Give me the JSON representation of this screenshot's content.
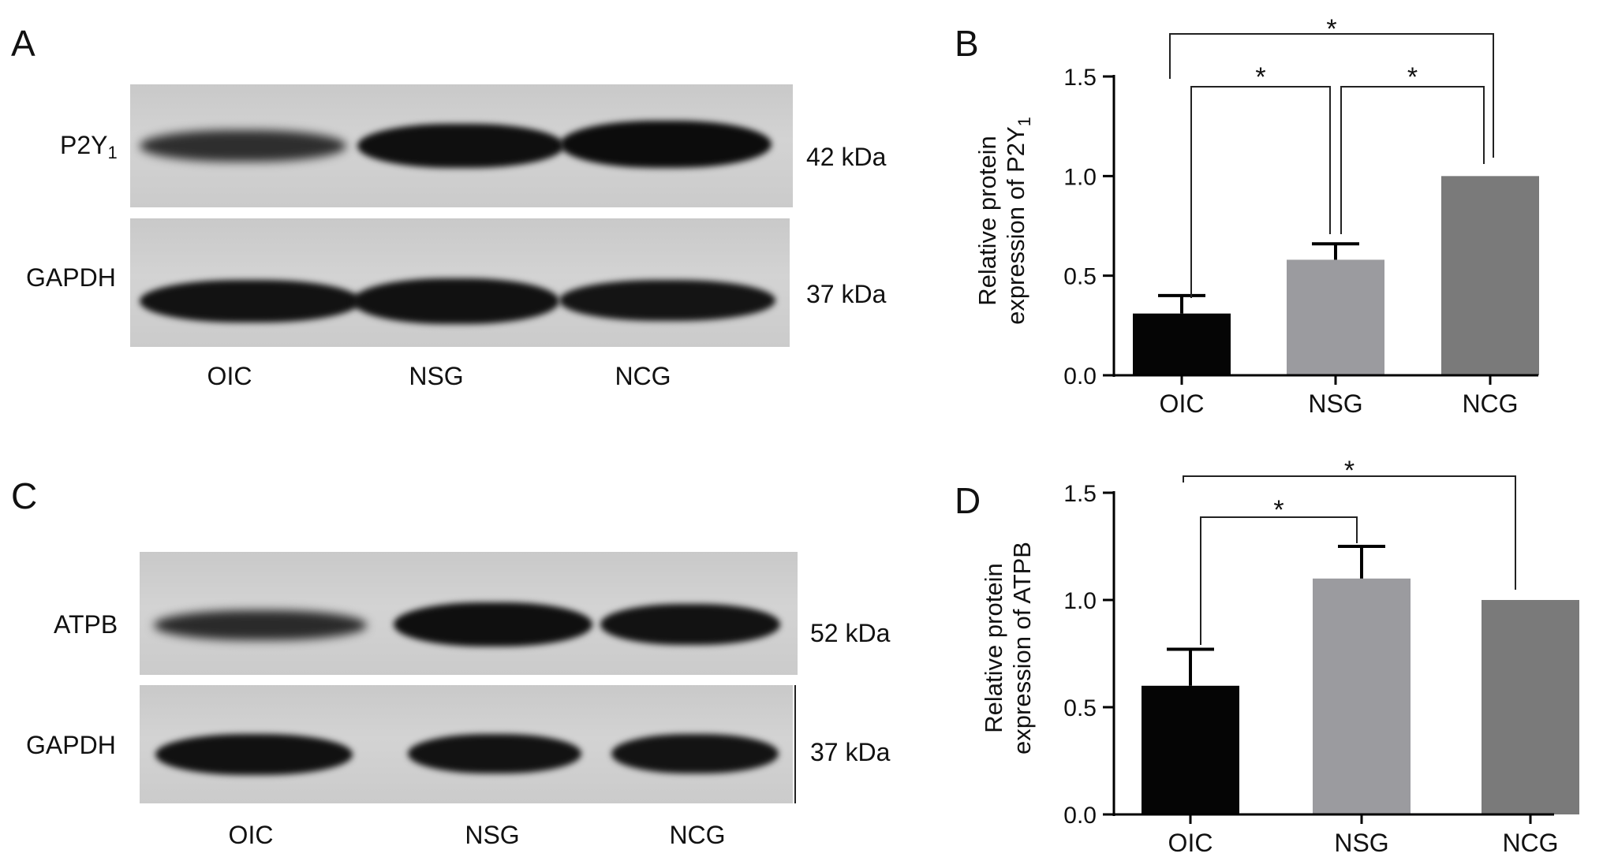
{
  "panels": {
    "a": {
      "letter": "A",
      "protein_top": "P2Y",
      "protein_top_sub": "1",
      "protein_bottom": "GAPDH",
      "kda_top": "42 kDa",
      "kda_bottom": "37 kDa",
      "lanes": [
        "OIC",
        "NSG",
        "NCG"
      ]
    },
    "b": {
      "letter": "B"
    },
    "c": {
      "letter": "C",
      "protein_top": "ATPB",
      "protein_bottom": "GAPDH",
      "kda_top": "52 kDa",
      "kda_bottom": "37 kDa",
      "lanes": [
        "OIC",
        "NSG",
        "NCG"
      ]
    },
    "d": {
      "letter": "D"
    }
  },
  "chart_data": [
    {
      "panel": "B",
      "type": "bar",
      "categories": [
        "OIC",
        "NSG",
        "NCG"
      ],
      "values": [
        0.31,
        0.58,
        1.0
      ],
      "error": [
        0.09,
        0.08,
        0.0
      ],
      "ylabel_line1": "Relative protein",
      "ylabel_line2": "expression of P2Y",
      "ylabel_sub": "1",
      "ylim": [
        0,
        1.5
      ],
      "yticks": [
        "0.0",
        "0.5",
        "1.0",
        "1.5"
      ],
      "bar_colors": [
        "#050505",
        "#9b9b9f",
        "#7a7a7a"
      ],
      "significance": [
        {
          "from": 0,
          "to": 1,
          "label": "*"
        },
        {
          "from": 1,
          "to": 2,
          "label": "*"
        },
        {
          "from": 0,
          "to": 2,
          "label": "*"
        }
      ]
    },
    {
      "panel": "D",
      "type": "bar",
      "categories": [
        "OIC",
        "NSG",
        "NCG"
      ],
      "values": [
        0.6,
        1.1,
        1.0
      ],
      "error": [
        0.17,
        0.15,
        0.0
      ],
      "ylabel_line1": "Relative protein",
      "ylabel_line2": "expression of ATPB",
      "ylim": [
        0,
        1.5
      ],
      "yticks": [
        "0.0",
        "0.5",
        "1.0",
        "1.5"
      ],
      "bar_colors": [
        "#050505",
        "#9b9b9f",
        "#7a7a7a"
      ],
      "significance": [
        {
          "from": 0,
          "to": 1,
          "label": "*"
        },
        {
          "from": 0,
          "to": 2,
          "label": "*"
        }
      ]
    }
  ]
}
